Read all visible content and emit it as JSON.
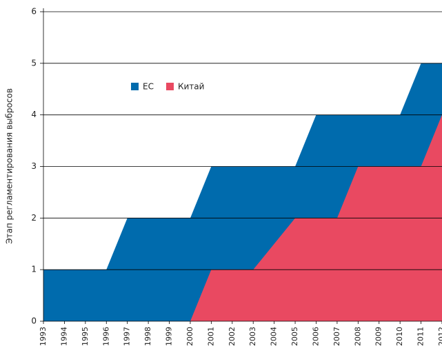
{
  "chart_data": {
    "type": "area",
    "y_label": "Этап регламентирования выбросов",
    "x": [
      1993,
      1994,
      1995,
      1996,
      1997,
      1998,
      1999,
      2000,
      2001,
      2002,
      2003,
      2004,
      2005,
      2006,
      2007,
      2008,
      2009,
      2010,
      2011,
      2012
    ],
    "series": [
      {
        "name": "ЕС",
        "color": "#006bad",
        "values": [
          1,
          1,
          1,
          1,
          2,
          2,
          2,
          2,
          3,
          3,
          3,
          3,
          3,
          4,
          4,
          4,
          4,
          4,
          5,
          5
        ]
      },
      {
        "name": "Китай",
        "color": "#e94961",
        "values": [
          0,
          0,
          0,
          0,
          0,
          0,
          0,
          0,
          1,
          1,
          1,
          1.5,
          2,
          2,
          2,
          3,
          3,
          3,
          3,
          4
        ]
      }
    ],
    "xlim": [
      1993,
      2012
    ],
    "xticks": [
      1993,
      1994,
      1995,
      1996,
      1997,
      1998,
      1999,
      2000,
      2001,
      2002,
      2003,
      2004,
      2005,
      2006,
      2007,
      2008,
      2009,
      2010,
      2011,
      2012
    ],
    "ylim": [
      0,
      6
    ],
    "yticks": [
      0,
      1,
      2,
      3,
      4,
      5,
      6
    ],
    "grid": true,
    "legend": "upper left"
  }
}
